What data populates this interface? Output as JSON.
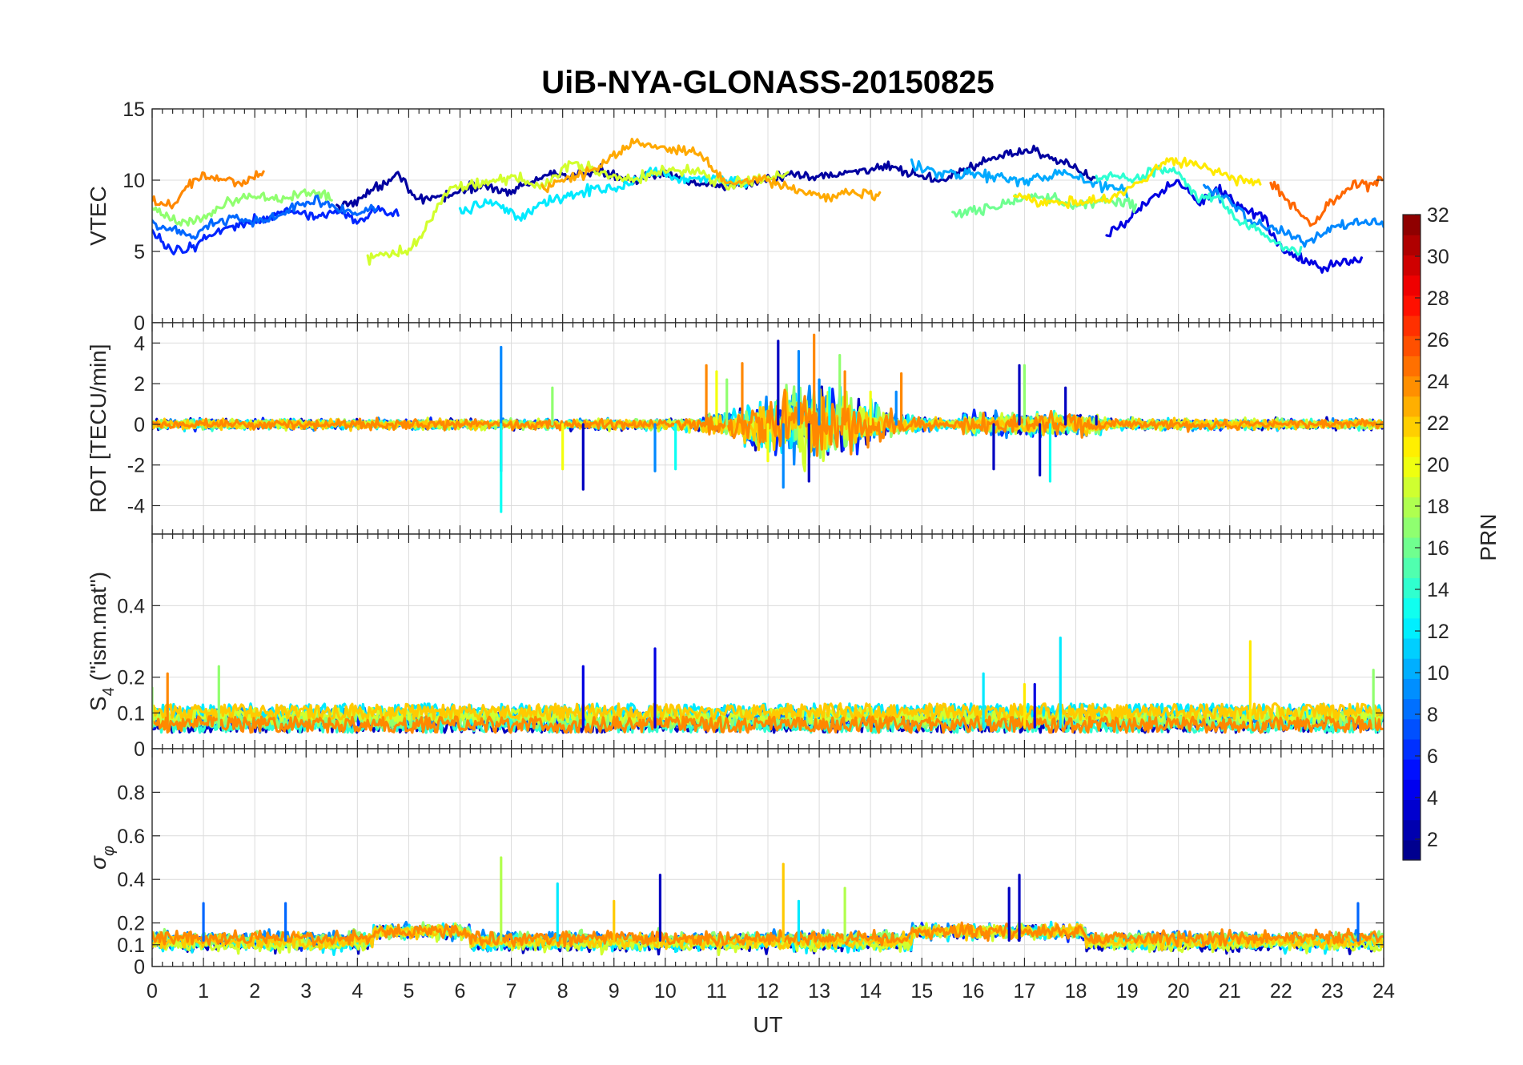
{
  "chart_data": {
    "type": "line",
    "title": "UiB-NYA-GLONASS-20150825",
    "xlabel": "UT",
    "xlim": [
      0,
      24
    ],
    "xticks": [
      0,
      1,
      2,
      3,
      4,
      5,
      6,
      7,
      8,
      9,
      10,
      11,
      12,
      13,
      14,
      15,
      16,
      17,
      18,
      19,
      20,
      21,
      22,
      23,
      24
    ],
    "panels": [
      {
        "id": "vtec",
        "ylabel": "VTEC",
        "ylim": [
          0,
          15
        ],
        "yticks": [
          0,
          5,
          10,
          15
        ],
        "series": [
          {
            "prn": 2,
            "x": [
              3.6,
              4.2,
              4.8,
              5.2,
              5.8,
              6.4,
              7.0,
              7.6,
              8.2,
              8.8,
              9.4,
              10.0,
              10.6,
              11.2,
              11.8,
              12.4,
              13.0,
              13.6,
              14.2,
              14.8,
              15.4,
              16.0,
              16.6,
              17.2,
              17.8,
              18.4
            ],
            "y": [
              8.0,
              9.0,
              10.6,
              8.4,
              9.0,
              9.6,
              9.2,
              10.2,
              10.4,
              10.6,
              10.0,
              10.4,
              9.8,
              9.6,
              9.9,
              10.3,
              10.2,
              10.6,
              10.9,
              10.4,
              10.0,
              11.0,
              11.8,
              12.1,
              11.2,
              10.0
            ]
          },
          {
            "prn": 4,
            "x": [
              18.6,
              19.0,
              19.5,
              20.0,
              20.4,
              20.8,
              21.2,
              21.6,
              22.0,
              22.4,
              22.8,
              23.2,
              23.6
            ],
            "y": [
              6.0,
              7.2,
              8.8,
              10.0,
              8.4,
              9.4,
              8.2,
              7.6,
              5.2,
              4.4,
              3.8,
              4.2,
              4.6
            ]
          },
          {
            "prn": 6,
            "x": [
              0.0,
              0.3,
              0.6,
              0.9,
              1.2,
              1.6,
              2.0,
              2.4,
              2.8,
              3.2,
              3.6,
              4.0,
              4.4,
              4.8
            ],
            "y": [
              6.2,
              5.4,
              5.0,
              5.6,
              6.4,
              6.8,
              7.2,
              7.6,
              8.0,
              7.4,
              7.8,
              7.0,
              8.0,
              7.6
            ]
          },
          {
            "prn": 8,
            "x": [
              0.0,
              0.4,
              0.8,
              1.2,
              1.6,
              2.0,
              2.4,
              2.8,
              3.2,
              3.6,
              4.0,
              4.4
            ],
            "y": [
              7.0,
              6.4,
              6.2,
              7.0,
              7.4,
              7.0,
              7.4,
              8.2,
              8.6,
              8.0,
              7.6,
              8.2
            ]
          },
          {
            "prn": 9,
            "x": [
              20.5,
              21.0,
              21.5,
              22.0,
              22.5,
              23.0,
              23.5,
              24.0
            ],
            "y": [
              9.6,
              8.4,
              7.0,
              6.4,
              5.6,
              6.6,
              7.2,
              6.8
            ]
          },
          {
            "prn": 10,
            "x": [
              14.8,
              15.4,
              16.0,
              16.6,
              17.2,
              17.8,
              18.4,
              19.0
            ],
            "y": [
              11.2,
              10.4,
              10.6,
              10.1,
              10.0,
              10.6,
              9.7,
              9.3
            ]
          },
          {
            "prn": 12,
            "x": [
              6.0,
              6.6,
              7.2,
              7.6,
              8.0,
              8.6,
              9.2,
              9.8,
              10.4,
              11.0,
              11.6
            ],
            "y": [
              7.6,
              8.6,
              7.2,
              8.4,
              8.8,
              9.4,
              9.6,
              10.6,
              10.0,
              10.2,
              9.8
            ]
          },
          {
            "prn": 14,
            "x": [
              18.4,
              18.8,
              19.2,
              19.6,
              20.0,
              20.4,
              20.8,
              21.2,
              21.6,
              22.0,
              22.4
            ],
            "y": [
              10.0,
              10.4,
              10.0,
              10.8,
              10.6,
              8.6,
              8.8,
              7.0,
              6.4,
              5.4,
              5.0
            ]
          },
          {
            "prn": 16,
            "x": [
              15.6,
              16.2,
              16.8,
              17.4,
              18.0,
              18.6,
              19.2
            ],
            "y": [
              7.6,
              8.0,
              8.6,
              8.8,
              8.2,
              8.6,
              8.2
            ]
          },
          {
            "prn": 17,
            "x": [
              0.0,
              0.5,
              1.0,
              1.5,
              2.0,
              2.5,
              3.0,
              3.5
            ],
            "y": [
              8.0,
              7.0,
              7.4,
              8.4,
              9.0,
              8.6,
              9.2,
              8.8
            ]
          },
          {
            "prn": 19,
            "x": [
              4.2,
              4.6,
              5.0,
              5.4,
              5.8,
              6.4,
              7.0,
              7.6,
              8.2,
              8.8,
              9.4,
              10.0,
              10.6,
              11.2,
              11.8,
              12.4
            ],
            "y": [
              4.5,
              4.8,
              5.0,
              7.0,
              9.2,
              9.8,
              10.2,
              9.6,
              11.2,
              10.4,
              10.0,
              10.8,
              10.6,
              9.6,
              10.0,
              10.4
            ]
          },
          {
            "prn": 21,
            "x": [
              16.8,
              17.4,
              18.0,
              18.6,
              19.2,
              19.8,
              20.4,
              21.0,
              21.6
            ],
            "y": [
              8.8,
              8.6,
              8.4,
              8.6,
              9.8,
              11.4,
              11.0,
              10.2,
              9.8
            ]
          },
          {
            "prn": 23,
            "x": [
              7.6,
              8.2,
              8.8,
              9.4,
              10.0,
              10.6,
              11.2,
              11.8,
              12.4,
              13.0,
              13.6,
              14.2
            ],
            "y": [
              9.4,
              10.2,
              11.2,
              12.6,
              12.2,
              12.0,
              9.8,
              10.2,
              9.4,
              8.8,
              9.2,
              8.8
            ]
          },
          {
            "prn": 24,
            "x": [
              0.0,
              0.4,
              0.8,
              1.0,
              1.4,
              1.8,
              2.2
            ],
            "y": [
              8.4,
              8.2,
              9.8,
              10.4,
              10.0,
              9.8,
              10.6
            ]
          },
          {
            "prn": 25,
            "x": [
              21.8,
              22.2,
              22.6,
              23.0,
              23.4,
              23.8,
              24.0
            ],
            "y": [
              9.8,
              8.4,
              6.8,
              8.6,
              9.6,
              9.8,
              10.2
            ]
          }
        ]
      },
      {
        "id": "rot",
        "ylabel": "ROT [TECU/min]",
        "ylim": [
          -5.4,
          5.0
        ],
        "yticks": [
          -4,
          -2,
          0,
          2,
          4
        ],
        "spikes": [
          {
            "prn": 3,
            "x": [
              6.8,
              8.4,
              12.2,
              12.8,
              16.4,
              16.9,
              17.3,
              17.8,
              18.4
            ],
            "y": [
              -2.3,
              -3.2,
              4.1,
              -2.8,
              -2.2,
              2.9,
              -2.5,
              1.8,
              0.4
            ]
          },
          {
            "prn": 9,
            "x": [
              6.8,
              9.8,
              12.3,
              12.6,
              13.0,
              14.5
            ],
            "y": [
              3.8,
              -2.3,
              -3.1,
              3.6,
              2.2,
              1.6
            ]
          },
          {
            "prn": 13,
            "x": [
              6.8,
              10.2,
              13.2,
              17.5
            ],
            "y": [
              -4.3,
              -2.2,
              1.8,
              -2.8
            ]
          },
          {
            "prn": 17,
            "x": [
              7.8,
              11.2,
              13.4,
              17.0
            ],
            "y": [
              1.8,
              2.2,
              3.4,
              2.9
            ]
          },
          {
            "prn": 20,
            "x": [
              8.0,
              11.0,
              12.0,
              14.0
            ],
            "y": [
              -2.2,
              2.6,
              -1.8,
              1.6
            ]
          },
          {
            "prn": 24,
            "x": [
              10.8,
              11.5,
              12.9,
              13.5,
              14.6
            ],
            "y": [
              2.9,
              3.0,
              4.4,
              2.6,
              2.5
            ]
          }
        ]
      },
      {
        "id": "s4",
        "ylabel": "S4 (\"ism.mat\")",
        "ylim": [
          0,
          0.6
        ],
        "yticks": [
          0,
          0.1,
          0.2,
          0.4
        ],
        "spikes": [
          {
            "prn": 4,
            "x": [
              9.8,
              8.4,
              17.2
            ],
            "y": [
              0.28,
              0.23,
              0.18
            ]
          },
          {
            "prn": 12,
            "x": [
              17.7,
              16.2
            ],
            "y": [
              0.31,
              0.21
            ]
          },
          {
            "prn": 17,
            "x": [
              1.3,
              0.0,
              23.8
            ],
            "y": [
              0.23,
              0.17,
              0.22
            ]
          },
          {
            "prn": 21,
            "x": [
              21.4,
              17.0
            ],
            "y": [
              0.3,
              0.18
            ]
          },
          {
            "prn": 24,
            "x": [
              0.3
            ],
            "y": [
              0.21
            ]
          }
        ]
      },
      {
        "id": "sigma",
        "ylabel": "σφ",
        "ylim": [
          0,
          1.0
        ],
        "yticks": [
          0,
          0.1,
          0.2,
          0.4,
          0.6,
          0.8
        ],
        "spikes": [
          {
            "prn": 3,
            "x": [
              9.9,
              16.7,
              16.9
            ],
            "y": [
              0.42,
              0.36,
              0.42
            ]
          },
          {
            "prn": 12,
            "x": [
              7.9,
              12.6
            ],
            "y": [
              0.38,
              0.3
            ]
          },
          {
            "prn": 18,
            "x": [
              6.8,
              13.5
            ],
            "y": [
              0.5,
              0.36
            ]
          },
          {
            "prn": 22,
            "x": [
              12.3,
              9.0
            ],
            "y": [
              0.47,
              0.3
            ]
          },
          {
            "prn": 8,
            "x": [
              1.0,
              2.6,
              23.5
            ],
            "y": [
              0.29,
              0.29,
              0.29
            ]
          }
        ]
      }
    ],
    "colorbar": {
      "label": "PRN",
      "range": [
        1,
        32
      ],
      "ticks": [
        2,
        4,
        6,
        8,
        10,
        12,
        14,
        16,
        18,
        20,
        22,
        24,
        26,
        28,
        30,
        32
      ],
      "colormap": "jet"
    }
  }
}
